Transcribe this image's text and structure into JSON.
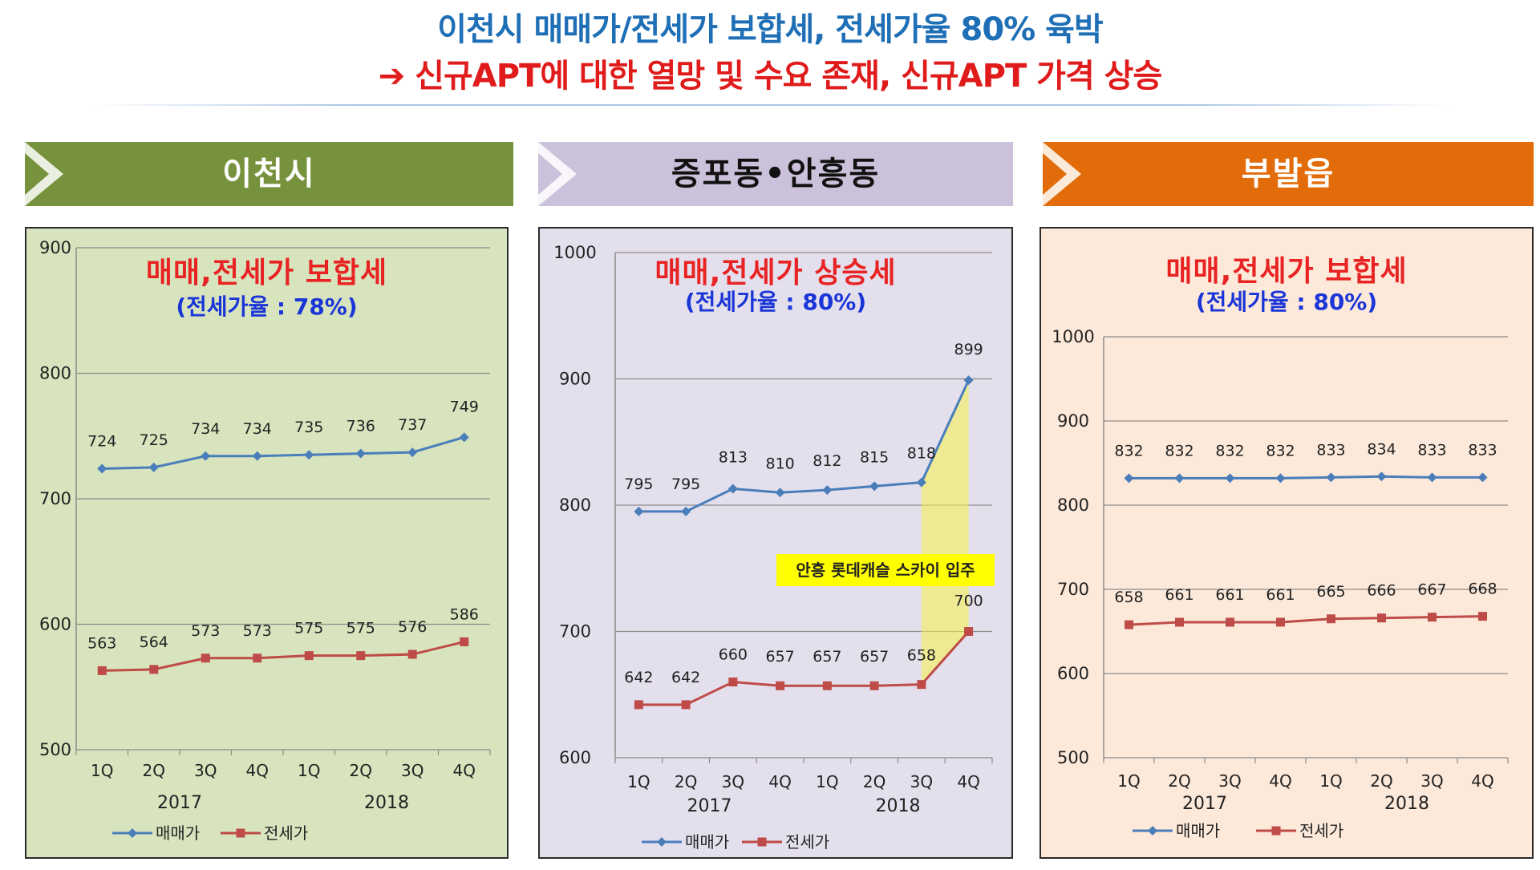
{
  "headline": {
    "line1": "이천시 매매가/전세가 보합세, 전세가율 80% 육박",
    "line2": "➔ 신규APT에 대한 열망 및 수요 존재, 신규APT 가격 상승"
  },
  "panels": [
    {
      "title": "이천시",
      "heading": "매매,전세가 보합세",
      "subheading": "(전세가율 : 78%)",
      "banner_color": "#77923c",
      "banner_text_color": "#ffffff",
      "bg_color": "#d8e4bd"
    },
    {
      "title": "증포동•안흥동",
      "heading": "매매,전세가 상승세",
      "subheading": "(전세가율 : 80%)",
      "annotation": "안흥 롯데캐슬 스카이 입주",
      "banner_color": "#ccc1da",
      "banner_text_color": "#111111",
      "bg_color": "#e4dfec"
    },
    {
      "title": "부발읍",
      "heading": "매매,전세가 보합세",
      "subheading": "(전세가율 : 80%)",
      "banner_color": "#e36c0a",
      "banner_text_color": "#ffffff",
      "bg_color": "#fde9d9"
    }
  ],
  "chart_data": [
    {
      "type": "line",
      "categories": [
        "1Q",
        "2Q",
        "3Q",
        "4Q",
        "1Q",
        "2Q",
        "3Q",
        "4Q"
      ],
      "years": [
        "2017",
        "2018"
      ],
      "ylim": [
        500,
        900
      ],
      "yticks": [
        500,
        600,
        700,
        800,
        900
      ],
      "series": [
        {
          "name": "매매가",
          "color": "#4a7ebb",
          "marker": "diamond",
          "values": [
            724,
            725,
            734,
            734,
            735,
            736,
            737,
            749
          ]
        },
        {
          "name": "전세가",
          "color": "#be4b48",
          "marker": "square",
          "values": [
            563,
            564,
            573,
            573,
            575,
            575,
            576,
            586
          ]
        }
      ]
    },
    {
      "type": "line",
      "categories": [
        "1Q",
        "2Q",
        "3Q",
        "4Q",
        "1Q",
        "2Q",
        "3Q",
        "4Q"
      ],
      "years": [
        "2017",
        "2018"
      ],
      "ylim": [
        600,
        1000
      ],
      "yticks": [
        600,
        700,
        800,
        900,
        1000
      ],
      "series": [
        {
          "name": "매매가",
          "color": "#4a7ebb",
          "marker": "diamond",
          "values": [
            795,
            795,
            813,
            810,
            812,
            815,
            818,
            899
          ]
        },
        {
          "name": "전세가",
          "color": "#be4b48",
          "marker": "square",
          "values": [
            642,
            642,
            660,
            657,
            657,
            657,
            658,
            700
          ]
        }
      ]
    },
    {
      "type": "line",
      "categories": [
        "1Q",
        "2Q",
        "3Q",
        "4Q",
        "1Q",
        "2Q",
        "3Q",
        "4Q"
      ],
      "years": [
        "2017",
        "2018"
      ],
      "ylim": [
        500,
        1000
      ],
      "yticks": [
        500,
        600,
        700,
        800,
        900,
        1000
      ],
      "series": [
        {
          "name": "매매가",
          "color": "#4a7ebb",
          "marker": "diamond",
          "values": [
            832,
            832,
            832,
            832,
            833,
            834,
            833,
            833
          ]
        },
        {
          "name": "전세가",
          "color": "#be4b48",
          "marker": "square",
          "values": [
            658,
            661,
            661,
            661,
            665,
            666,
            667,
            668
          ]
        }
      ]
    }
  ]
}
